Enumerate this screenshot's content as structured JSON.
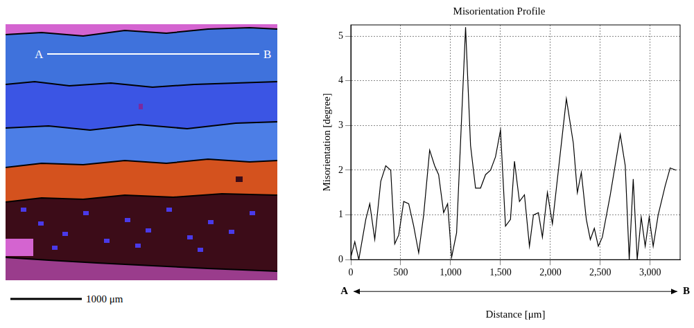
{
  "map": {
    "line_start": "A",
    "line_end": "B",
    "scale_bar": "1000 μm"
  },
  "chart_data": {
    "type": "line",
    "title": "Misorientation Profile",
    "x_label": "Distance [μm]",
    "y_label": "Misorientation [degree]",
    "x_direction": [
      "A",
      "B"
    ],
    "x": [
      0,
      40,
      80,
      150,
      190,
      240,
      300,
      350,
      400,
      440,
      480,
      530,
      580,
      630,
      680,
      730,
      790,
      840,
      880,
      930,
      970,
      1010,
      1060,
      1150,
      1200,
      1250,
      1300,
      1350,
      1400,
      1450,
      1500,
      1550,
      1600,
      1640,
      1690,
      1740,
      1790,
      1830,
      1880,
      1920,
      1970,
      2020,
      2060,
      2160,
      2230,
      2270,
      2310,
      2360,
      2400,
      2440,
      2480,
      2520,
      2600,
      2700,
      2750,
      2790,
      2830,
      2870,
      2910,
      2950,
      2990,
      3030,
      3080,
      3150,
      3200,
      3260
    ],
    "values": [
      0.05,
      0.4,
      0.0,
      0.9,
      1.25,
      0.45,
      1.75,
      2.1,
      2.0,
      0.35,
      0.55,
      1.3,
      1.25,
      0.75,
      0.15,
      1.0,
      2.45,
      2.1,
      1.9,
      1.05,
      1.25,
      0.05,
      0.6,
      5.2,
      2.55,
      1.6,
      1.6,
      1.9,
      2.0,
      2.3,
      2.9,
      0.75,
      0.9,
      2.2,
      1.3,
      1.45,
      0.3,
      1.0,
      1.05,
      0.5,
      1.5,
      0.8,
      1.6,
      3.6,
      2.6,
      1.5,
      1.95,
      0.9,
      0.45,
      0.7,
      0.3,
      0.5,
      1.45,
      2.8,
      2.1,
      0.0,
      1.8,
      0.0,
      0.95,
      0.3,
      0.95,
      0.3,
      1.0,
      1.65,
      2.05,
      2.0
    ],
    "color": "#000000",
    "marker": "none",
    "line_style": "solid",
    "xlim": [
      0,
      3300
    ],
    "xticks": [
      0,
      500,
      {
        "value": 1000,
        "label": "1,000"
      },
      {
        "value": 1500,
        "label": "1,500"
      },
      {
        "value": 2000,
        "label": "2,000"
      },
      {
        "value": 2500,
        "label": "2,500"
      },
      {
        "value": 3000,
        "label": "3,000"
      }
    ],
    "ylim": [
      0,
      5.25
    ],
    "yticks": [
      0,
      1,
      2,
      3,
      4,
      5
    ],
    "grid": true
  }
}
